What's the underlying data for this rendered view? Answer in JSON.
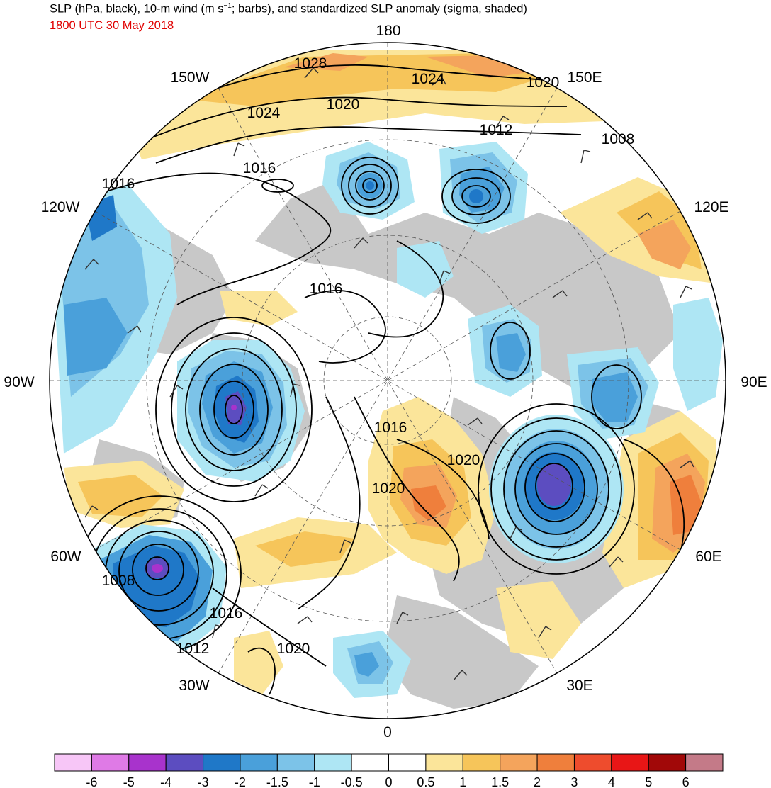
{
  "title": {
    "prefix": "SLP (hPa, black), 10-m wind (m s",
    "superscript": "−1",
    "suffix": "; barbs), and standardized SLP anomaly (sigma, shaded)"
  },
  "valid_time": "1800 UTC 30 May 2018",
  "projection": "north-polar-stereographic",
  "longitude_labels": [
    "180",
    "150E",
    "120E",
    "90E",
    "60E",
    "30E",
    "0",
    "30W",
    "60W",
    "90W",
    "120W",
    "150W"
  ],
  "contour_labels": [
    "1028",
    "1024",
    "1020",
    "1024",
    "1020",
    "1012",
    "1008",
    "1016",
    "1016",
    "1016",
    "1016",
    "1020",
    "1020",
    "1008",
    "1016",
    "1012",
    "1020"
  ],
  "colorbar": {
    "ticks": [
      "-6",
      "-5",
      "-4",
      "-3",
      "-2",
      "-1.5",
      "-1",
      "-0.5",
      "0",
      "0.5",
      "1",
      "1.5",
      "2",
      "3",
      "4",
      "5",
      "6"
    ],
    "colors": [
      "#f7c6f7",
      "#df7ae6",
      "#a833cc",
      "#5c4dc0",
      "#1f78c8",
      "#4aa0da",
      "#7cc3e8",
      "#aee6f4",
      "#ffffff",
      "#ffffff",
      "#fbe59a",
      "#f6c55a",
      "#f4a45c",
      "#ef7f3c",
      "#ee4c2d",
      "#e81616",
      "#a10808",
      "#c47a88"
    ]
  },
  "features": {
    "land_color": "#c8c8c8",
    "highs": [
      {
        "label": "1028",
        "anomaly_sigma": 1.5
      },
      {
        "label": "1020",
        "anomaly_sigma": 2
      }
    ],
    "lows": [
      {
        "label": "1008",
        "anomaly_sigma": -4
      }
    ]
  }
}
